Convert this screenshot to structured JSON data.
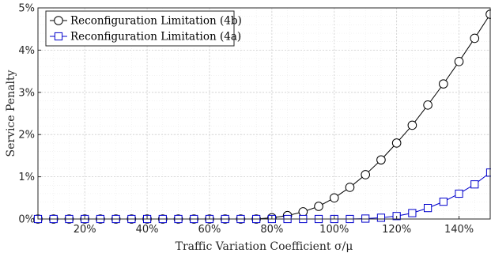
{
  "chart_data": {
    "type": "line",
    "title": "",
    "xlabel": "Traffic Variation Coefficient σ/μ",
    "ylabel": "Service Penalty",
    "xlim": [
      5,
      150
    ],
    "ylim": [
      0,
      5
    ],
    "grid": true,
    "minor_grid": true,
    "legend_position": "top-left",
    "x": [
      5,
      10,
      15,
      20,
      25,
      30,
      35,
      40,
      45,
      50,
      55,
      60,
      65,
      70,
      75,
      80,
      85,
      90,
      95,
      100,
      105,
      110,
      115,
      120,
      125,
      130,
      135,
      140,
      145,
      150
    ],
    "xticks": [
      20,
      40,
      60,
      80,
      100,
      120,
      140
    ],
    "xtick_labels": [
      "20%",
      "40%",
      "60%",
      "80%",
      "100%",
      "120%",
      "140%"
    ],
    "yticks": [
      0,
      1,
      2,
      3,
      4,
      5
    ],
    "ytick_labels": [
      "0%",
      "1%",
      "2%",
      "3%",
      "4%",
      "5%"
    ],
    "series": [
      {
        "name": "Reconfiguration Limitation (4b)",
        "color": "#000000",
        "marker": "circle",
        "values": [
          0,
          0,
          0,
          0,
          0,
          0,
          0,
          0,
          0,
          0,
          0,
          0,
          0,
          0,
          0,
          0.03,
          0.08,
          0.17,
          0.3,
          0.5,
          0.75,
          1.05,
          1.4,
          1.8,
          2.22,
          2.7,
          3.2,
          3.73,
          4.28,
          4.85
        ]
      },
      {
        "name": "Reconfiguration Limitation (4a)",
        "color": "#0000cc",
        "marker": "square",
        "values": [
          0,
          0,
          0,
          0,
          0,
          0,
          0,
          0,
          0,
          0,
          0,
          0,
          0,
          0,
          0,
          0,
          0,
          0,
          0,
          0,
          0,
          0.01,
          0.03,
          0.07,
          0.14,
          0.26,
          0.41,
          0.6,
          0.82,
          1.1
        ]
      }
    ]
  }
}
